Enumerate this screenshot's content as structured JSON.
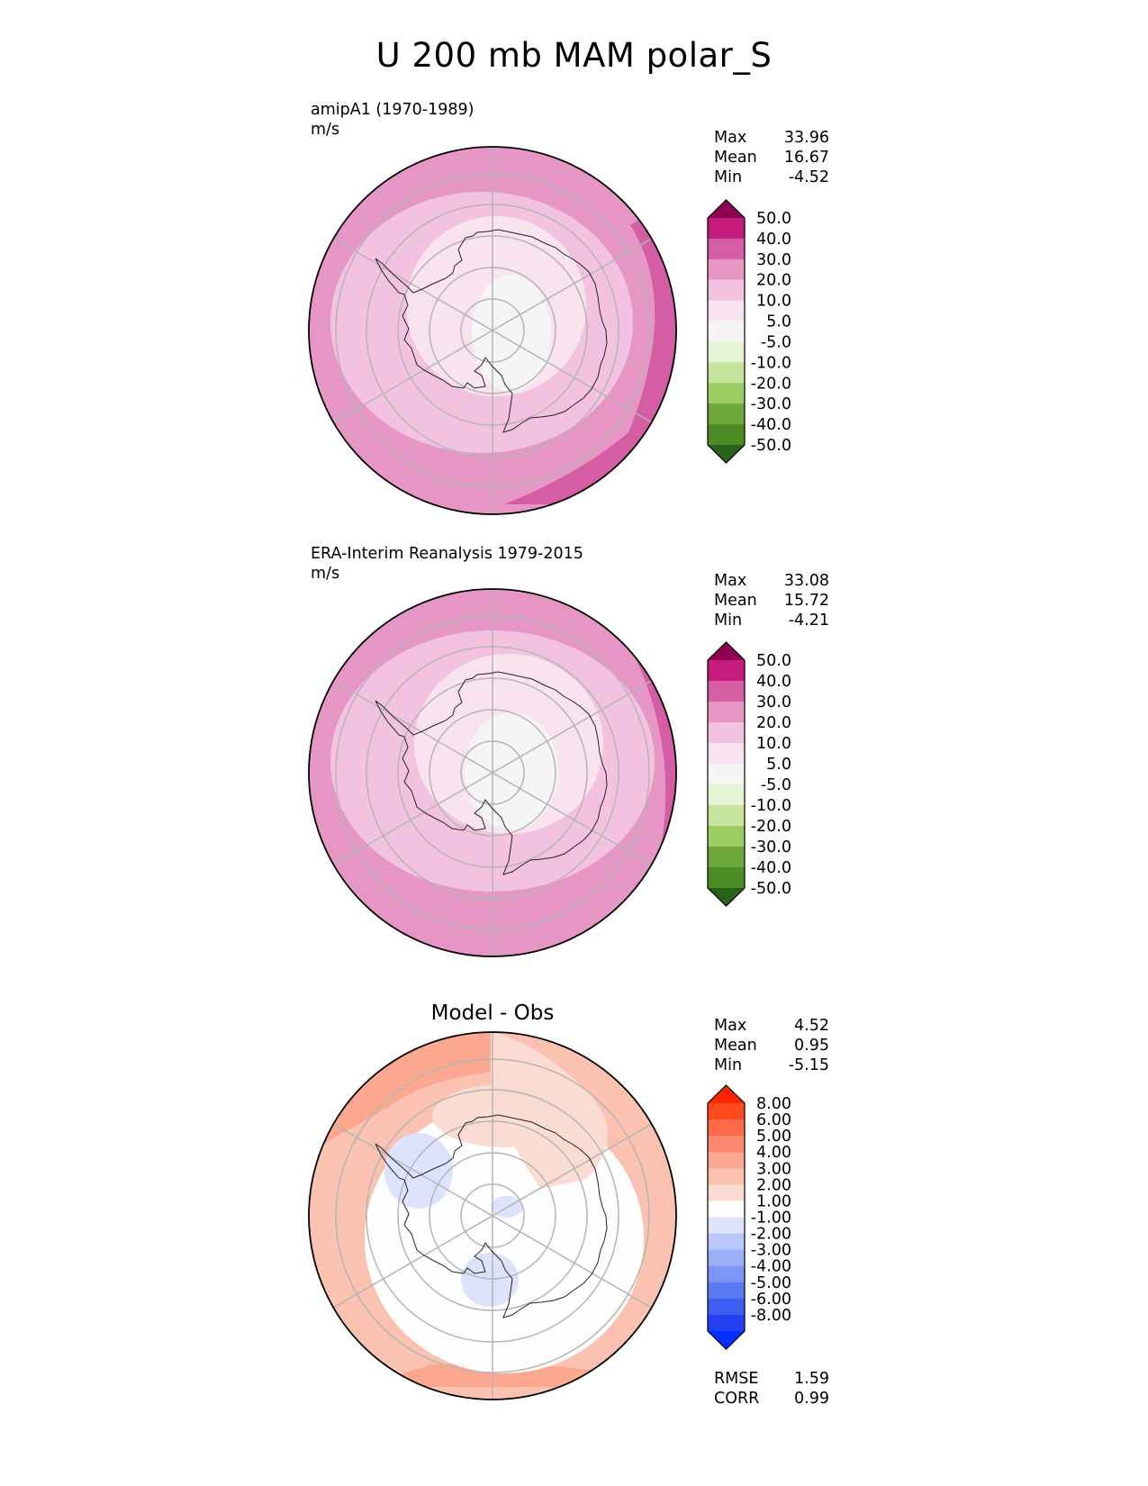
{
  "title": "U 200 mb MAM polar_S",
  "panels": [
    {
      "id": "test",
      "title": "amipA1 (1970-1989)",
      "units": "m/s",
      "stats": [
        {
          "label": "Max",
          "value": "33.96"
        },
        {
          "label": "Mean",
          "value": "16.67"
        },
        {
          "label": "Min",
          "value": "-4.52"
        }
      ],
      "colorbar": {
        "labels": [
          "50.0",
          "40.0",
          "30.0",
          "20.0",
          "10.0",
          "5.0",
          "-5.0",
          "-10.0",
          "-20.0",
          "-30.0",
          "-40.0",
          "-50.0"
        ],
        "top_color": "#8e0152",
        "bottom_color": "#276419",
        "colors": [
          "#c51b7d",
          "#d55da4",
          "#e596c5",
          "#f2c2e0",
          "#f9e3ef",
          "#f5f5f5",
          "#e5f4d2",
          "#c5e49c",
          "#9bcd62",
          "#6fa83a",
          "#4d8b25"
        ]
      }
    },
    {
      "id": "reference",
      "title": "ERA-Interim Reanalysis 1979-2015",
      "units": "m/s",
      "stats": [
        {
          "label": "Max",
          "value": "33.08"
        },
        {
          "label": "Mean",
          "value": "15.72"
        },
        {
          "label": "Min",
          "value": "-4.21"
        }
      ],
      "colorbar": {
        "labels": [
          "50.0",
          "40.0",
          "30.0",
          "20.0",
          "10.0",
          "5.0",
          "-5.0",
          "-10.0",
          "-20.0",
          "-30.0",
          "-40.0",
          "-50.0"
        ],
        "top_color": "#8e0152",
        "bottom_color": "#276419",
        "colors": [
          "#c51b7d",
          "#d55da4",
          "#e596c5",
          "#f2c2e0",
          "#f9e3ef",
          "#f5f5f5",
          "#e5f4d2",
          "#c5e49c",
          "#9bcd62",
          "#6fa83a",
          "#4d8b25"
        ]
      }
    },
    {
      "id": "diff",
      "title": "Model - Obs",
      "stats": [
        {
          "label": "Max",
          "value": "4.52"
        },
        {
          "label": "Mean",
          "value": "0.95"
        },
        {
          "label": "Min",
          "value": "-5.15"
        }
      ],
      "metrics": [
        {
          "label": "RMSE",
          "value": "1.59"
        },
        {
          "label": "CORR",
          "value": "0.99"
        }
      ],
      "colorbar": {
        "labels": [
          "8.00",
          "6.00",
          "5.00",
          "4.00",
          "3.00",
          "2.00",
          "1.00",
          "-1.00",
          "-2.00",
          "-3.00",
          "-4.00",
          "-5.00",
          "-6.00",
          "-8.00"
        ],
        "top_color": "#ff2400",
        "bottom_color": "#0030ff",
        "colors": [
          "#ff4a1e",
          "#ff6b4a",
          "#fd8a70",
          "#fca78f",
          "#fbc2b1",
          "#fbdcd2",
          "#fefefe",
          "#dde3fd",
          "#bac7fb",
          "#9aaff8",
          "#7c95f6",
          "#5c79f4",
          "#3f5ff2",
          "#2241f0"
        ]
      }
    }
  ],
  "chart_data": {
    "type": "heatmap",
    "title": "U 200 mb MAM polar_S",
    "projection": "south polar stereographic",
    "variable": "U",
    "level": "200 mb",
    "season": "MAM",
    "region": "polar_S",
    "panels": [
      {
        "name": "amipA1 (1970-1989)",
        "units": "m/s",
        "max": 33.96,
        "mean": 16.67,
        "min": -4.52,
        "levels": [
          -50,
          -40,
          -30,
          -20,
          -10,
          -5,
          5,
          10,
          20,
          30,
          40,
          50
        ]
      },
      {
        "name": "ERA-Interim Reanalysis 1979-2015",
        "units": "m/s",
        "max": 33.08,
        "mean": 15.72,
        "min": -4.21,
        "levels": [
          -50,
          -40,
          -30,
          -20,
          -10,
          -5,
          5,
          10,
          20,
          30,
          40,
          50
        ]
      },
      {
        "name": "Model - Obs",
        "max": 4.52,
        "mean": 0.95,
        "min": -5.15,
        "rmse": 1.59,
        "corr": 0.99,
        "levels": [
          -8,
          -6,
          -5,
          -4,
          -3,
          -2,
          -1,
          1,
          2,
          3,
          4,
          5,
          6,
          8
        ]
      }
    ]
  }
}
